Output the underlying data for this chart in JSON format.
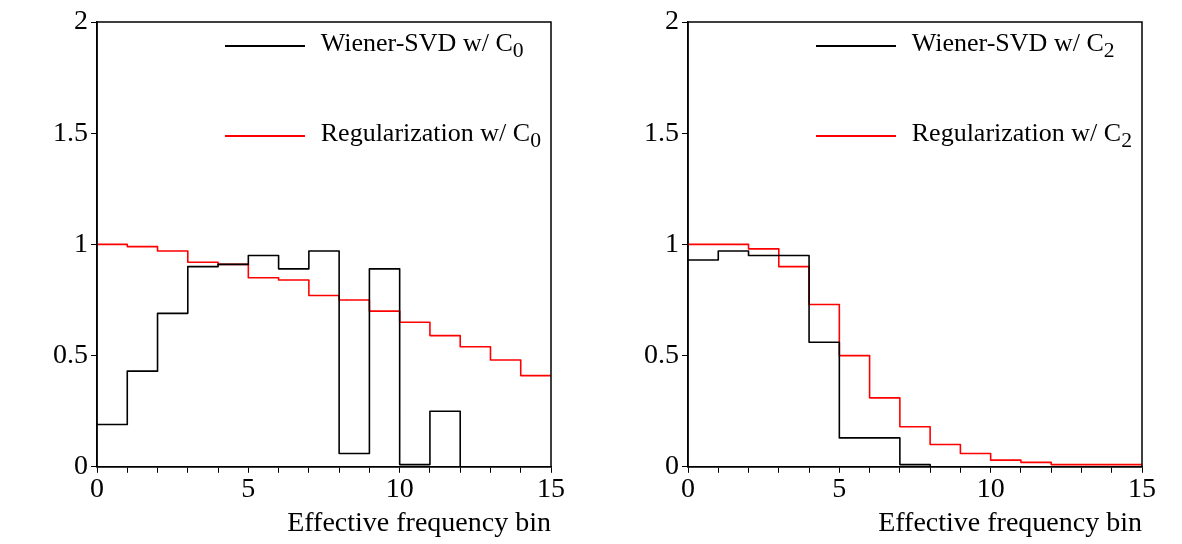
{
  "chart_data": [
    {
      "type": "histogram",
      "xlabel": "Effective frequency bin",
      "bins": [
        0,
        1,
        2,
        3,
        4,
        5,
        6,
        7,
        8,
        9,
        10,
        11,
        12,
        13,
        14,
        15
      ],
      "xlim": [
        0,
        15
      ],
      "xticks": [
        0,
        {
          "value": 1,
          "label": null
        },
        {
          "value": 2,
          "label": null
        },
        {
          "value": 3,
          "label": null
        },
        {
          "value": 4,
          "label": null
        },
        5,
        {
          "value": 6,
          "label": null
        },
        {
          "value": 7,
          "label": null
        },
        {
          "value": 8,
          "label": null
        },
        {
          "value": 9,
          "label": null
        },
        10,
        {
          "value": 11,
          "label": null
        },
        {
          "value": 12,
          "label": null
        },
        {
          "value": 13,
          "label": null
        },
        {
          "value": 14,
          "label": null
        },
        15
      ],
      "ylim": [
        0,
        2
      ],
      "yticks": [
        0,
        0.5,
        1,
        1.5,
        2
      ],
      "grid": false,
      "legend": "top right",
      "series": [
        {
          "name": "Wiener-SVD w/ C$_{0}$",
          "color": "#000000",
          "values": [
            0.19,
            0.43,
            0.69,
            0.9,
            0.91,
            0.95,
            0.89,
            0.97,
            0.06,
            0.89,
            0.01,
            0.25,
            0,
            0,
            0
          ]
        },
        {
          "name": "Regularization w/ C$_{0}$",
          "color": "#ff0000",
          "values": [
            1.0,
            0.99,
            0.97,
            0.92,
            0.91,
            0.85,
            0.84,
            0.77,
            0.75,
            0.7,
            0.65,
            0.59,
            0.54,
            0.48,
            0.41
          ]
        }
      ]
    },
    {
      "type": "histogram",
      "xlabel": "Effective frequency bin",
      "bins": [
        0,
        1,
        2,
        3,
        4,
        5,
        6,
        7,
        8,
        9,
        10,
        11,
        12,
        13,
        14,
        15
      ],
      "xlim": [
        0,
        15
      ],
      "xticks": [
        0,
        {
          "value": 1,
          "label": null
        },
        {
          "value": 2,
          "label": null
        },
        {
          "value": 3,
          "label": null
        },
        {
          "value": 4,
          "label": null
        },
        5,
        {
          "value": 6,
          "label": null
        },
        {
          "value": 7,
          "label": null
        },
        {
          "value": 8,
          "label": null
        },
        {
          "value": 9,
          "label": null
        },
        10,
        {
          "value": 11,
          "label": null
        },
        {
          "value": 12,
          "label": null
        },
        {
          "value": 13,
          "label": null
        },
        {
          "value": 14,
          "label": null
        },
        15
      ],
      "ylim": [
        0,
        2
      ],
      "yticks": [
        0,
        0.5,
        1,
        1.5,
        2
      ],
      "grid": false,
      "legend": "top right",
      "series": [
        {
          "name": "Wiener-SVD w/ C$_{2}$",
          "color": "#000000",
          "values": [
            0.93,
            0.97,
            0.95,
            0.95,
            0.56,
            0.13,
            0.13,
            0.01,
            0,
            0,
            0,
            0,
            0,
            0,
            0
          ]
        },
        {
          "name": "Regularization w/ C$_{2}$",
          "color": "#ff0000",
          "values": [
            1.0,
            1.0,
            0.98,
            0.9,
            0.73,
            0.5,
            0.31,
            0.18,
            0.1,
            0.06,
            0.03,
            0.02,
            0.01,
            0.01,
            0.01
          ]
        }
      ]
    }
  ]
}
